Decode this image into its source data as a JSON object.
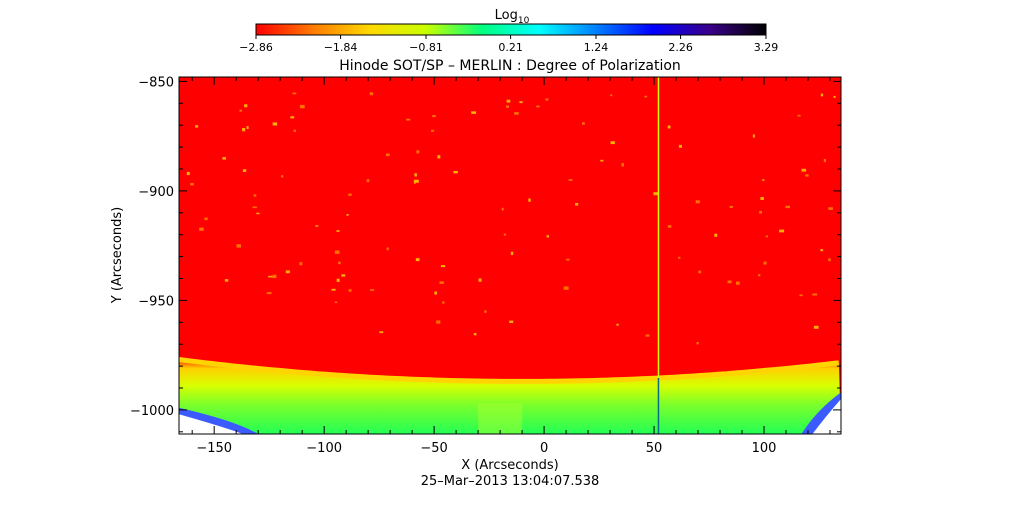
{
  "chart_data": {
    "type": "heatmap",
    "title": "Hinode SOT/SP – MERLIN : Degree of Polarization",
    "xlabel": "X (Arcseconds)",
    "ylabel": "Y (Arcseconds)",
    "footer": "25–Mar–2013 13:04:07.538",
    "colorbar": {
      "label": "Log",
      "label_sub": "10",
      "range": [
        -2.86,
        3.29
      ],
      "ticks": [
        "−2.86",
        "−1.84",
        "−0.81",
        "0.21",
        "1.24",
        "2.26",
        "3.29"
      ],
      "tick_values": [
        -2.86,
        -1.84,
        -0.81,
        0.21,
        1.24,
        2.26,
        3.29
      ],
      "colors": [
        "#ff0000",
        "#ff7a00",
        "#ffd800",
        "#c8ff00",
        "#00ff80",
        "#00ffff",
        "#0080ff",
        "#0000ff",
        "#3a008a",
        "#000000"
      ]
    },
    "xlim": [
      -166,
      135
    ],
    "ylim": [
      -1011,
      -848
    ],
    "x_ticks": [
      -150,
      -100,
      -50,
      0,
      50,
      100
    ],
    "x_tick_labels": [
      "−150",
      "−100",
      "−50",
      "0",
      "50",
      "100"
    ],
    "y_ticks": [
      -850,
      -900,
      -950,
      -1000
    ],
    "y_tick_labels": [
      "−850",
      "−900",
      "−950",
      "−1000"
    ],
    "limb": {
      "edge_y_at_center": -987,
      "edge_y_at_left": -977,
      "edge_y_at_right": -977,
      "center_x": -10
    },
    "artifact_line_x": 52,
    "background_log_value": -2.86
  }
}
